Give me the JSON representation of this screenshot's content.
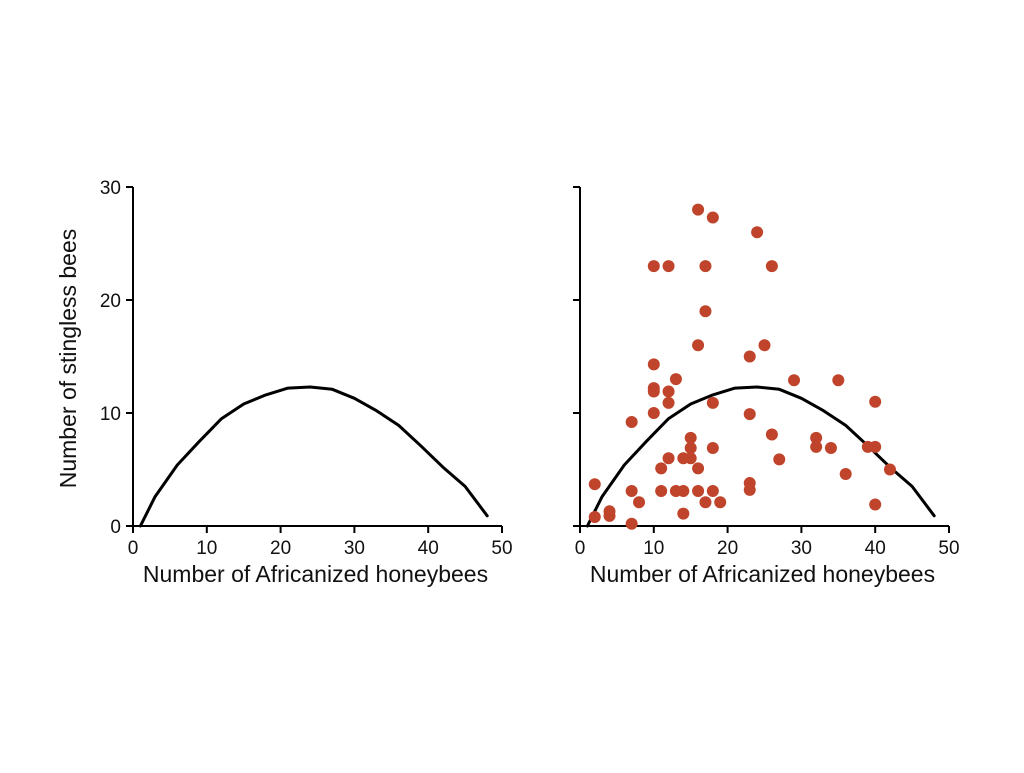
{
  "chart_data": [
    {
      "type": "line",
      "xlabel": "Number of Africanized honeybees",
      "ylabel": "Number of stingless bees",
      "xlim": [
        0,
        50
      ],
      "ylim": [
        0,
        30
      ],
      "xticks": [
        "0",
        "10",
        "20",
        "30",
        "40",
        "50"
      ],
      "yticks": [
        "0",
        "10",
        "20",
        "30"
      ],
      "grid": false,
      "series": [
        {
          "color": "#000000",
          "x": [
            1,
            3,
            6,
            9,
            12,
            15,
            18,
            21,
            24,
            27,
            30,
            33,
            36,
            39,
            42,
            45,
            48
          ],
          "y": [
            0,
            2.6,
            5.4,
            7.5,
            9.5,
            10.8,
            11.6,
            12.2,
            12.3,
            12.1,
            11.3,
            10.2,
            8.9,
            7.1,
            5.2,
            3.5,
            0.9
          ]
        }
      ]
    },
    {
      "type": "scatter",
      "xlabel": "Number of Africanized honeybees",
      "xlim": [
        0,
        50
      ],
      "ylim": [
        0,
        30
      ],
      "xticks": [
        "0",
        "10",
        "20",
        "30",
        "40",
        "50"
      ],
      "grid": false,
      "line": {
        "color": "#000000",
        "x": [
          1,
          3,
          6,
          9,
          12,
          15,
          18,
          21,
          24,
          27,
          30,
          33,
          36,
          39,
          42,
          45,
          48
        ],
        "y": [
          0,
          2.6,
          5.4,
          7.5,
          9.5,
          10.8,
          11.6,
          12.2,
          12.3,
          12.1,
          11.3,
          10.2,
          8.9,
          7.1,
          5.2,
          3.5,
          0.9
        ]
      },
      "points_color": "#c0442b",
      "points": [
        [
          2,
          3.7
        ],
        [
          2,
          0.8
        ],
        [
          4,
          1.3
        ],
        [
          4,
          0.9
        ],
        [
          7,
          9.2
        ],
        [
          7,
          3.1
        ],
        [
          7,
          0.2
        ],
        [
          8,
          2.1
        ],
        [
          10,
          23
        ],
        [
          10,
          14.3
        ],
        [
          10,
          12.2
        ],
        [
          10,
          10
        ],
        [
          10,
          11.9
        ],
        [
          11,
          3.1
        ],
        [
          11,
          5.1
        ],
        [
          12,
          23
        ],
        [
          12,
          11.9
        ],
        [
          12,
          10.9
        ],
        [
          12,
          6
        ],
        [
          13,
          13
        ],
        [
          13,
          3.1
        ],
        [
          14,
          6
        ],
        [
          14,
          3.1
        ],
        [
          14,
          1.1
        ],
        [
          15,
          7.8
        ],
        [
          15,
          6.9
        ],
        [
          15,
          6
        ],
        [
          16,
          28
        ],
        [
          16,
          16
        ],
        [
          16,
          5.1
        ],
        [
          16,
          3.1
        ],
        [
          17,
          23
        ],
        [
          17,
          19
        ],
        [
          17,
          2.1
        ],
        [
          18,
          27.3
        ],
        [
          18,
          10.9
        ],
        [
          18,
          6.9
        ],
        [
          18,
          3.1
        ],
        [
          19,
          2.1
        ],
        [
          23,
          15
        ],
        [
          23,
          9.9
        ],
        [
          23,
          3.8
        ],
        [
          23,
          3.2
        ],
        [
          24,
          26
        ],
        [
          25,
          16
        ],
        [
          26,
          23
        ],
        [
          26,
          8.1
        ],
        [
          27,
          5.9
        ],
        [
          29,
          12.9
        ],
        [
          32,
          7.8
        ],
        [
          32,
          7
        ],
        [
          34,
          6.9
        ],
        [
          35,
          12.9
        ],
        [
          36,
          4.6
        ],
        [
          39,
          7
        ],
        [
          40,
          7
        ],
        [
          40,
          11
        ],
        [
          40,
          1.9
        ],
        [
          42,
          5
        ]
      ]
    }
  ]
}
